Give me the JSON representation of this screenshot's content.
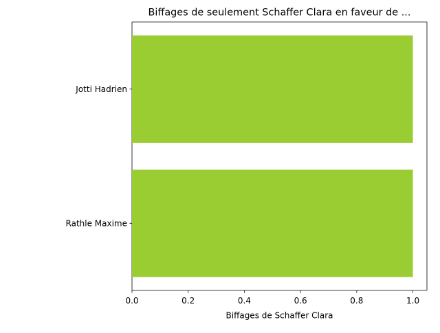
{
  "chart_data": {
    "type": "bar",
    "orientation": "horizontal",
    "title": "Biffages de seulement Schaffer Clara en faveur de ...",
    "xlabel": "Biffages de Schaffer Clara",
    "ylabel": "",
    "categories": [
      "Jotti Hadrien",
      "Rathle Maxime"
    ],
    "values": [
      1,
      1
    ],
    "xlim": [
      0,
      1.05
    ],
    "xticks": [
      "0.0",
      "0.2",
      "0.4",
      "0.6",
      "0.8",
      "1.0"
    ],
    "bar_color": "#9ACD32",
    "grid": false,
    "legend": "none"
  }
}
